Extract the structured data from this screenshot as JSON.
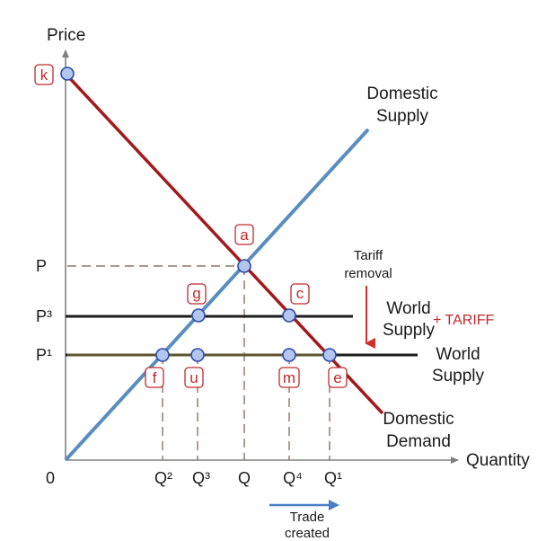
{
  "axes": {
    "y_label": "Price",
    "x_label": "Quantity",
    "origin": "0"
  },
  "price_ticks": {
    "p": "P",
    "p3": "P³",
    "p1": "P¹"
  },
  "quantity_ticks": {
    "q2": "Q²",
    "q3": "Q³",
    "q": "Q",
    "q4": "Q⁴",
    "q1": "Q¹"
  },
  "curves": {
    "domestic_supply": [
      "Domestic",
      "Supply"
    ],
    "domestic_demand": [
      "Domestic",
      "Demand"
    ],
    "world_supply_tariff": [
      "World",
      "Supply"
    ],
    "tariff_suffix": "+ TARIFF",
    "world_supply": [
      "World",
      "Supply"
    ]
  },
  "annotations": {
    "tariff_removal": [
      "Tariff",
      "removal"
    ],
    "trade_created": [
      "Trade",
      "created"
    ]
  },
  "points": {
    "k": "k",
    "a": "a",
    "g": "g",
    "c": "c",
    "f": "f",
    "u": "u",
    "m": "m",
    "e": "e"
  },
  "colors": {
    "demand": "#a3191b",
    "supply": "#5a8dbf",
    "world": "#1c1c1c",
    "world_tariff_stroke": "#4f4a2b",
    "accent_red": "#c0292b",
    "point_fill": "#b3c6ef",
    "point_stroke": "#2c4aa8",
    "axis": "#808080",
    "trade_arrow": "#4a7fc4"
  }
}
